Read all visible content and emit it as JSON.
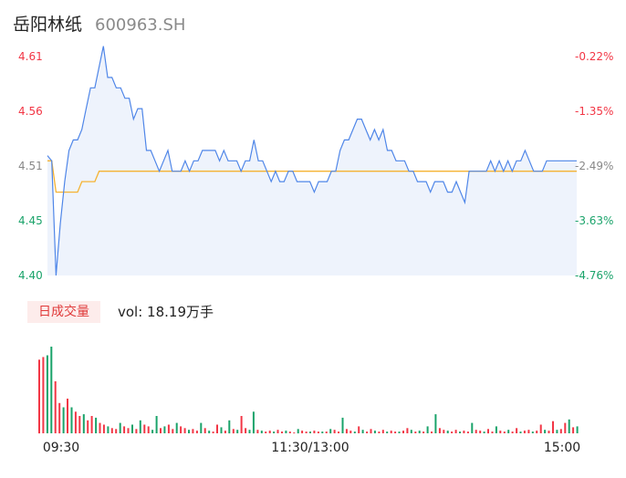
{
  "header": {
    "name": "岳阳林纸",
    "code": "600963.SH"
  },
  "volume_panel": {
    "tag": "日成交量",
    "vol_text": "vol: 18.19万手"
  },
  "colors": {
    "price": "#4f86e8",
    "avg": "#f5b333",
    "up": "#f23645",
    "down": "#1aa36a",
    "area": "#eef3fc"
  },
  "chart_data": [
    {
      "type": "line",
      "title": "",
      "y_left_ticks": [
        "4.61",
        "4.56",
        "4.51",
        "4.45",
        "4.40"
      ],
      "y_right_ticks": [
        "-0.22%",
        "-1.35%",
        "-2.49%",
        "-3.63%",
        "-4.76%"
      ],
      "ylim": [
        4.4,
        4.61
      ],
      "x_ticks": [
        "09:30",
        "11:30/13:00",
        "15:00"
      ],
      "series": [
        {
          "key": "price",
          "values": [
            4.515,
            4.51,
            4.4,
            4.45,
            4.49,
            4.52,
            4.53,
            4.53,
            4.54,
            4.56,
            4.58,
            4.58,
            4.6,
            4.62,
            4.59,
            4.59,
            4.58,
            4.58,
            4.57,
            4.57,
            4.55,
            4.56,
            4.56,
            4.52,
            4.52,
            4.51,
            4.5,
            4.51,
            4.52,
            4.5,
            4.5,
            4.5,
            4.51,
            4.5,
            4.51,
            4.51,
            4.52,
            4.52,
            4.52,
            4.52,
            4.51,
            4.52,
            4.51,
            4.51,
            4.51,
            4.5,
            4.51,
            4.51,
            4.53,
            4.51,
            4.51,
            4.5,
            4.49,
            4.5,
            4.49,
            4.49,
            4.5,
            4.5,
            4.49,
            4.49,
            4.49,
            4.49,
            4.48,
            4.49,
            4.49,
            4.49,
            4.5,
            4.5,
            4.52,
            4.53,
            4.53,
            4.54,
            4.55,
            4.55,
            4.54,
            4.53,
            4.54,
            4.53,
            4.54,
            4.52,
            4.52,
            4.51,
            4.51,
            4.51,
            4.5,
            4.5,
            4.49,
            4.49,
            4.49,
            4.48,
            4.49,
            4.49,
            4.49,
            4.48,
            4.48,
            4.49,
            4.48,
            4.47,
            4.5,
            4.5,
            4.5,
            4.5,
            4.5,
            4.51,
            4.5,
            4.51,
            4.5,
            4.51,
            4.5,
            4.51,
            4.51,
            4.52,
            4.51,
            4.5,
            4.5,
            4.5,
            4.51,
            4.51,
            4.51,
            4.51,
            4.51,
            4.51,
            4.51,
            4.51
          ]
        },
        {
          "key": "avg",
          "values": [
            4.51,
            4.51,
            4.48,
            4.48,
            4.48,
            4.48,
            4.48,
            4.48,
            4.49,
            4.49,
            4.49,
            4.49,
            4.5,
            4.5,
            4.5,
            4.5,
            4.5,
            4.5,
            4.5,
            4.5,
            4.5,
            4.5,
            4.5,
            4.5,
            4.5,
            4.5,
            4.5,
            4.5,
            4.5,
            4.5,
            4.5,
            4.5,
            4.5,
            4.5,
            4.5,
            4.5,
            4.5,
            4.5,
            4.5,
            4.5,
            4.5,
            4.5,
            4.5,
            4.5,
            4.5,
            4.5,
            4.5,
            4.5,
            4.5,
            4.5,
            4.5,
            4.5,
            4.5,
            4.5,
            4.5,
            4.5,
            4.5,
            4.5,
            4.5,
            4.5,
            4.5,
            4.5,
            4.5,
            4.5,
            4.5,
            4.5,
            4.5,
            4.5,
            4.5,
            4.5,
            4.5,
            4.5,
            4.5,
            4.5,
            4.5,
            4.5,
            4.5,
            4.5,
            4.5,
            4.5,
            4.5,
            4.5,
            4.5,
            4.5,
            4.5,
            4.5,
            4.5,
            4.5,
            4.5,
            4.5,
            4.5,
            4.5,
            4.5,
            4.5,
            4.5,
            4.5,
            4.5,
            4.5,
            4.5,
            4.5,
            4.5,
            4.5,
            4.5,
            4.5,
            4.5,
            4.5,
            4.5,
            4.5,
            4.5,
            4.5,
            4.5,
            4.5,
            4.5,
            4.5,
            4.5,
            4.5,
            4.5,
            4.5,
            4.5,
            4.5,
            4.5,
            4.5,
            4.5,
            4.5
          ]
        }
      ]
    },
    {
      "type": "bar",
      "title": "",
      "values": [
        0.85,
        0.88,
        0.9,
        1.0,
        0.6,
        0.35,
        0.3,
        0.4,
        0.3,
        0.25,
        0.2,
        0.22,
        0.15,
        0.2,
        0.18,
        0.12,
        0.1,
        0.08,
        0.06,
        0.05,
        0.12,
        0.08,
        0.06,
        0.1,
        0.05,
        0.15,
        0.1,
        0.08,
        0.04,
        0.2,
        0.06,
        0.08,
        0.1,
        0.05,
        0.12,
        0.08,
        0.06,
        0.04,
        0.05,
        0.03,
        0.12,
        0.06,
        0.03,
        0.02,
        0.1,
        0.07,
        0.03,
        0.15,
        0.05,
        0.04,
        0.2,
        0.06,
        0.04,
        0.25,
        0.04,
        0.03,
        0.02,
        0.03,
        0.02,
        0.04,
        0.02,
        0.03,
        0.02,
        0.01,
        0.05,
        0.03,
        0.02,
        0.02,
        0.03,
        0.02,
        0.02,
        0.02,
        0.05,
        0.04,
        0.02,
        0.18,
        0.05,
        0.03,
        0.02,
        0.08,
        0.04,
        0.02,
        0.05,
        0.03,
        0.02,
        0.04,
        0.02,
        0.03,
        0.02,
        0.02,
        0.03,
        0.06,
        0.04,
        0.02,
        0.03,
        0.02,
        0.08,
        0.02,
        0.22,
        0.06,
        0.04,
        0.03,
        0.02,
        0.04,
        0.02,
        0.03,
        0.02,
        0.12,
        0.04,
        0.03,
        0.02,
        0.05,
        0.02,
        0.08,
        0.03,
        0.02,
        0.04,
        0.02,
        0.06,
        0.02,
        0.03,
        0.04,
        0.02,
        0.03,
        0.1,
        0.04,
        0.03,
        0.14,
        0.04,
        0.05,
        0.12,
        0.16,
        0.07,
        0.08
      ],
      "colors": [
        "up",
        "up",
        "down",
        "down",
        "up",
        "up",
        "down",
        "up",
        "down",
        "up",
        "up",
        "down",
        "up",
        "up",
        "down",
        "up",
        "up",
        "down",
        "up",
        "up",
        "down",
        "up",
        "up",
        "down",
        "up",
        "down",
        "up",
        "up",
        "down",
        "down",
        "up",
        "down",
        "up",
        "up",
        "down",
        "up",
        "up",
        "down",
        "up",
        "up",
        "down",
        "up",
        "down",
        "up",
        "up",
        "down",
        "up",
        "down",
        "up",
        "down",
        "up",
        "up",
        "down",
        "down",
        "up",
        "down",
        "up",
        "up",
        "down",
        "up",
        "up",
        "down",
        "up",
        "up",
        "down",
        "up",
        "up",
        "down",
        "up",
        "up",
        "down",
        "up",
        "down",
        "up",
        "up",
        "down",
        "up",
        "up",
        "down",
        "up",
        "down",
        "up",
        "up",
        "down",
        "up",
        "up",
        "down",
        "up",
        "up",
        "down",
        "up",
        "up",
        "down",
        "up",
        "down",
        "up",
        "down",
        "up",
        "down",
        "up",
        "up",
        "down",
        "up",
        "up",
        "down",
        "up",
        "up",
        "down",
        "up",
        "up",
        "down",
        "up",
        "up",
        "down",
        "up",
        "up",
        "down",
        "up",
        "up",
        "down",
        "up",
        "up",
        "down",
        "up",
        "up",
        "down",
        "up",
        "up",
        "down",
        "up",
        "up",
        "down",
        "up",
        "down"
      ]
    }
  ]
}
